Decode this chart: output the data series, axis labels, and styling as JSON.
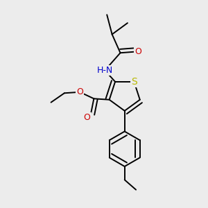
{
  "background_color": "#ececec",
  "atom_colors": {
    "S": "#b8b800",
    "N": "#0000cc",
    "O": "#cc0000",
    "C": "#000000"
  },
  "bond_color": "#000000",
  "bond_width": 1.4,
  "dbo": 0.018,
  "font_size": 9,
  "xlim": [
    0.0,
    1.0
  ],
  "ylim": [
    0.0,
    1.0
  ]
}
